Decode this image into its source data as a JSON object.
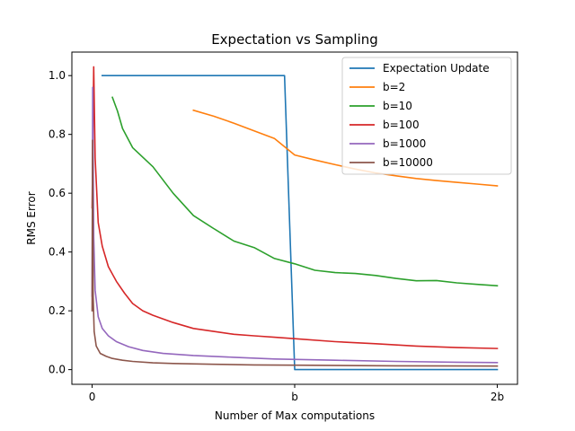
{
  "chart_data": {
    "type": "line",
    "title": "Expectation vs Sampling",
    "xlabel": "Number of Max computations",
    "ylabel": "RMS Error",
    "xlim": [
      -0.1,
      2.1
    ],
    "ylim": [
      -0.05,
      1.08
    ],
    "xticks": [
      {
        "value": 0,
        "label": "0"
      },
      {
        "value": 1,
        "label": "b"
      },
      {
        "value": 2,
        "label": "2b"
      }
    ],
    "yticks": [
      {
        "value": 0.0,
        "label": "0.0"
      },
      {
        "value": 0.2,
        "label": "0.2"
      },
      {
        "value": 0.4,
        "label": "0.4"
      },
      {
        "value": 0.6,
        "label": "0.6"
      },
      {
        "value": 0.8,
        "label": "0.8"
      },
      {
        "value": 1.0,
        "label": "1.0"
      }
    ],
    "grid": false,
    "legend_position": "top-right",
    "series": [
      {
        "name": "Expectation Update",
        "color": "#1f77b4",
        "points": [
          [
            0.05,
            1.0
          ],
          [
            0.95,
            1.0
          ],
          [
            1.0,
            0.0
          ],
          [
            2.0,
            0.0
          ]
        ]
      },
      {
        "name": "b=2",
        "color": "#ff7f0e",
        "points": [
          [
            0.5,
            0.882
          ],
          [
            0.6,
            0.862
          ],
          [
            0.7,
            0.838
          ],
          [
            0.8,
            0.812
          ],
          [
            0.9,
            0.786
          ],
          [
            1.0,
            0.73
          ],
          [
            1.1,
            0.713
          ],
          [
            1.2,
            0.697
          ],
          [
            1.3,
            0.682
          ],
          [
            1.4,
            0.669
          ],
          [
            1.5,
            0.659
          ],
          [
            1.6,
            0.65
          ],
          [
            1.7,
            0.643
          ],
          [
            1.8,
            0.637
          ],
          [
            1.9,
            0.631
          ],
          [
            2.0,
            0.625
          ]
        ]
      },
      {
        "name": "b=10",
        "color": "#2ca02c",
        "points": [
          [
            0.1,
            0.926
          ],
          [
            0.125,
            0.88
          ],
          [
            0.15,
            0.82
          ],
          [
            0.2,
            0.755
          ],
          [
            0.3,
            0.69
          ],
          [
            0.4,
            0.6
          ],
          [
            0.5,
            0.524
          ],
          [
            0.6,
            0.48
          ],
          [
            0.7,
            0.437
          ],
          [
            0.8,
            0.415
          ],
          [
            0.9,
            0.378
          ],
          [
            1.0,
            0.36
          ],
          [
            1.1,
            0.338
          ],
          [
            1.2,
            0.33
          ],
          [
            1.3,
            0.327
          ],
          [
            1.4,
            0.32
          ],
          [
            1.5,
            0.31
          ],
          [
            1.6,
            0.302
          ],
          [
            1.7,
            0.303
          ],
          [
            1.8,
            0.295
          ],
          [
            1.9,
            0.29
          ],
          [
            2.0,
            0.285
          ]
        ]
      },
      {
        "name": "b=100",
        "color": "#d62728",
        "points": [
          [
            0.0,
            0.55
          ],
          [
            0.008,
            1.03
          ],
          [
            0.015,
            0.72
          ],
          [
            0.03,
            0.5
          ],
          [
            0.05,
            0.42
          ],
          [
            0.08,
            0.35
          ],
          [
            0.12,
            0.3
          ],
          [
            0.16,
            0.26
          ],
          [
            0.2,
            0.225
          ],
          [
            0.25,
            0.2
          ],
          [
            0.3,
            0.185
          ],
          [
            0.4,
            0.16
          ],
          [
            0.5,
            0.14
          ],
          [
            0.6,
            0.13
          ],
          [
            0.7,
            0.12
          ],
          [
            0.8,
            0.115
          ],
          [
            0.9,
            0.11
          ],
          [
            1.0,
            0.105
          ],
          [
            1.2,
            0.095
          ],
          [
            1.4,
            0.088
          ],
          [
            1.6,
            0.08
          ],
          [
            1.8,
            0.075
          ],
          [
            2.0,
            0.072
          ]
        ]
      },
      {
        "name": "b=1000",
        "color": "#9467bd",
        "points": [
          [
            0.0,
            0.25
          ],
          [
            0.003,
            0.96
          ],
          [
            0.008,
            0.45
          ],
          [
            0.015,
            0.27
          ],
          [
            0.03,
            0.18
          ],
          [
            0.05,
            0.14
          ],
          [
            0.08,
            0.115
          ],
          [
            0.12,
            0.095
          ],
          [
            0.18,
            0.078
          ],
          [
            0.25,
            0.065
          ],
          [
            0.35,
            0.055
          ],
          [
            0.5,
            0.048
          ],
          [
            0.7,
            0.042
          ],
          [
            0.9,
            0.036
          ],
          [
            1.2,
            0.032
          ],
          [
            1.5,
            0.028
          ],
          [
            1.8,
            0.025
          ],
          [
            2.0,
            0.024
          ]
        ]
      },
      {
        "name": "b=10000",
        "color": "#8c564b",
        "points": [
          [
            0.0,
            0.2
          ],
          [
            0.002,
            0.78
          ],
          [
            0.005,
            0.25
          ],
          [
            0.01,
            0.13
          ],
          [
            0.02,
            0.08
          ],
          [
            0.04,
            0.055
          ],
          [
            0.07,
            0.045
          ],
          [
            0.1,
            0.038
          ],
          [
            0.15,
            0.032
          ],
          [
            0.2,
            0.028
          ],
          [
            0.3,
            0.023
          ],
          [
            0.4,
            0.021
          ],
          [
            0.6,
            0.018
          ],
          [
            0.8,
            0.016
          ],
          [
            1.0,
            0.015
          ],
          [
            1.5,
            0.013
          ],
          [
            2.0,
            0.012
          ]
        ]
      }
    ]
  }
}
